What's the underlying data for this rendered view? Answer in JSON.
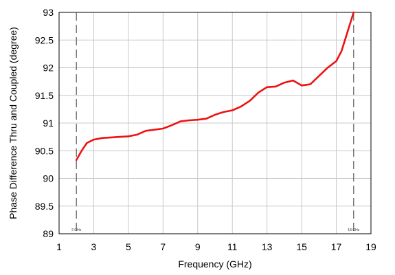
{
  "chart_data": {
    "type": "line",
    "title": "",
    "xlabel": "Frequency (GHz)",
    "ylabel": "Phase Difference Thru and Coupled (degree)",
    "xlim": [
      1,
      19
    ],
    "ylim": [
      89,
      93
    ],
    "xticks": [
      1,
      3,
      5,
      7,
      9,
      11,
      13,
      15,
      17,
      19
    ],
    "yticks": [
      89,
      89.5,
      90,
      90.5,
      91,
      91.5,
      92,
      92.5,
      93
    ],
    "grid": true,
    "legend": "none",
    "colors": {
      "line": "#ee1111",
      "grid": "#c8c8c8",
      "marker": "#666666"
    },
    "markers": [
      {
        "x": 2,
        "label": "2 GHz"
      },
      {
        "x": 18,
        "label": "18 GHz"
      }
    ],
    "series": [
      {
        "x": [
          2.0,
          2.3,
          2.6,
          3.0,
          3.5,
          4.0,
          4.5,
          5.0,
          5.5,
          6.0,
          6.5,
          7.0,
          7.5,
          8.0,
          8.5,
          9.0,
          9.5,
          10.0,
          10.5,
          11.0,
          11.5,
          12.0,
          12.5,
          13.0,
          13.5,
          14.0,
          14.5,
          15.0,
          15.5,
          16.0,
          16.5,
          17.0,
          17.3,
          17.6,
          17.8,
          18.0
        ],
        "values": [
          90.33,
          90.5,
          90.64,
          90.7,
          90.73,
          90.74,
          90.75,
          90.76,
          90.79,
          90.86,
          90.88,
          90.9,
          90.96,
          91.03,
          91.05,
          91.06,
          91.08,
          91.15,
          91.2,
          91.23,
          91.3,
          91.4,
          91.55,
          91.65,
          91.66,
          91.73,
          91.77,
          91.68,
          91.7,
          91.85,
          92.0,
          92.12,
          92.3,
          92.6,
          92.8,
          93.0
        ]
      }
    ]
  }
}
